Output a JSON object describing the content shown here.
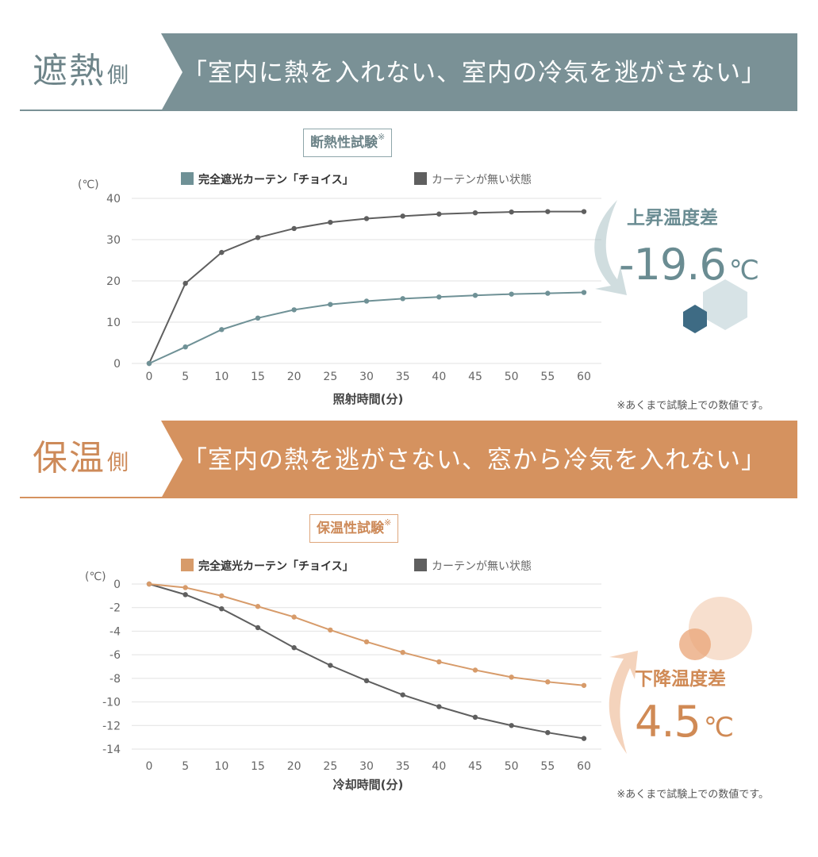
{
  "sections": [
    {
      "id": "heat-shield",
      "title": "遮熱",
      "title_suffix": "側",
      "tagline": "「室内に熱を入れない、室内の冷気を逃がさない」",
      "test_label": "断熱性試験",
      "test_mark": "※",
      "note": "※あくまで試験上での数値です。",
      "badge_label": "上昇温度差",
      "badge_value": "-19.6",
      "badge_unit": "℃",
      "colors": {
        "accent": "#7a9196",
        "series_main": "#6f9196",
        "series_ref": "#5f5f5f",
        "badge": "#6a8c92"
      },
      "chart_data": {
        "type": "line",
        "xlabel": "照射時間(分)",
        "ylabel": "(℃)",
        "x": [
          0,
          5,
          10,
          15,
          20,
          25,
          30,
          35,
          40,
          45,
          50,
          55,
          60
        ],
        "ylim": [
          0,
          40
        ],
        "yticks": [
          0,
          10,
          20,
          30,
          40
        ],
        "grid": true,
        "legend": "top",
        "series": [
          {
            "name": "完全遮光カーテン「チョイス」",
            "values": [
              0,
              4,
              8.2,
              11,
              13,
              14.3,
              15.1,
              15.7,
              16.1,
              16.5,
              16.8,
              17,
              17.2
            ]
          },
          {
            "name": "カーテンが無い状態",
            "values": [
              0,
              19.4,
              26.9,
              30.5,
              32.7,
              34.2,
              35.1,
              35.7,
              36.2,
              36.5,
              36.7,
              36.8,
              36.8
            ]
          }
        ]
      }
    },
    {
      "id": "heat-retain",
      "title": "保温",
      "title_suffix": "側",
      "tagline": "「室内の熱を逃がさない、窓から冷気を入れない」",
      "test_label": "保温性試験",
      "test_mark": "※",
      "note": "※あくまで試験上での数値です。",
      "badge_label": "下降温度差",
      "badge_value": "4.5",
      "badge_unit": "℃",
      "colors": {
        "accent": "#d5925f",
        "series_main": "#d79b6a",
        "series_ref": "#5f5f5f",
        "badge": "#d08a55"
      },
      "chart_data": {
        "type": "line",
        "xlabel": "冷却時間(分)",
        "ylabel": "(℃)",
        "x": [
          0,
          5,
          10,
          15,
          20,
          25,
          30,
          35,
          40,
          45,
          50,
          55,
          60
        ],
        "ylim": [
          -14,
          0
        ],
        "yticks": [
          0,
          -2,
          -4,
          -6,
          -8,
          -10,
          -12,
          -14
        ],
        "grid": true,
        "legend": "top",
        "series": [
          {
            "name": "完全遮光カーテン「チョイス」",
            "values": [
              0,
              -0.3,
              -1,
              -1.9,
              -2.8,
              -3.9,
              -4.9,
              -5.8,
              -6.6,
              -7.3,
              -7.9,
              -8.3,
              -8.6
            ]
          },
          {
            "name": "カーテンが無い状態",
            "values": [
              0,
              -0.9,
              -2.1,
              -3.7,
              -5.4,
              -6.9,
              -8.2,
              -9.4,
              -10.4,
              -11.3,
              -12,
              -12.6,
              -13.1
            ]
          }
        ]
      }
    }
  ]
}
